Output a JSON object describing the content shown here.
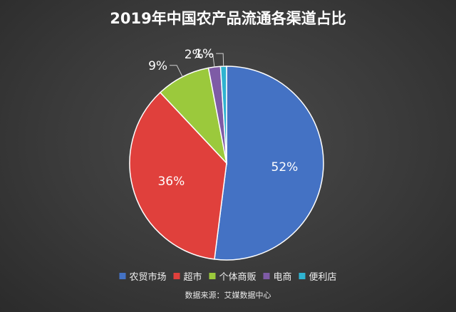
{
  "chart_data": {
    "type": "pie",
    "title": "2019年中国农产品流通各渠道占比",
    "categories": [
      "农贸市场",
      "超市",
      "个体商贩",
      "电商",
      "便利店"
    ],
    "values": [
      52,
      36,
      9,
      2,
      1
    ],
    "labels": [
      "52%",
      "36%",
      "9%",
      "2%",
      "1%"
    ],
    "colors": [
      "#4472C4",
      "#E0403C",
      "#9BC93C",
      "#7E5BA6",
      "#2FB3D0"
    ],
    "legend_position": "bottom",
    "source": "数据来源：艾媒数据中心"
  }
}
